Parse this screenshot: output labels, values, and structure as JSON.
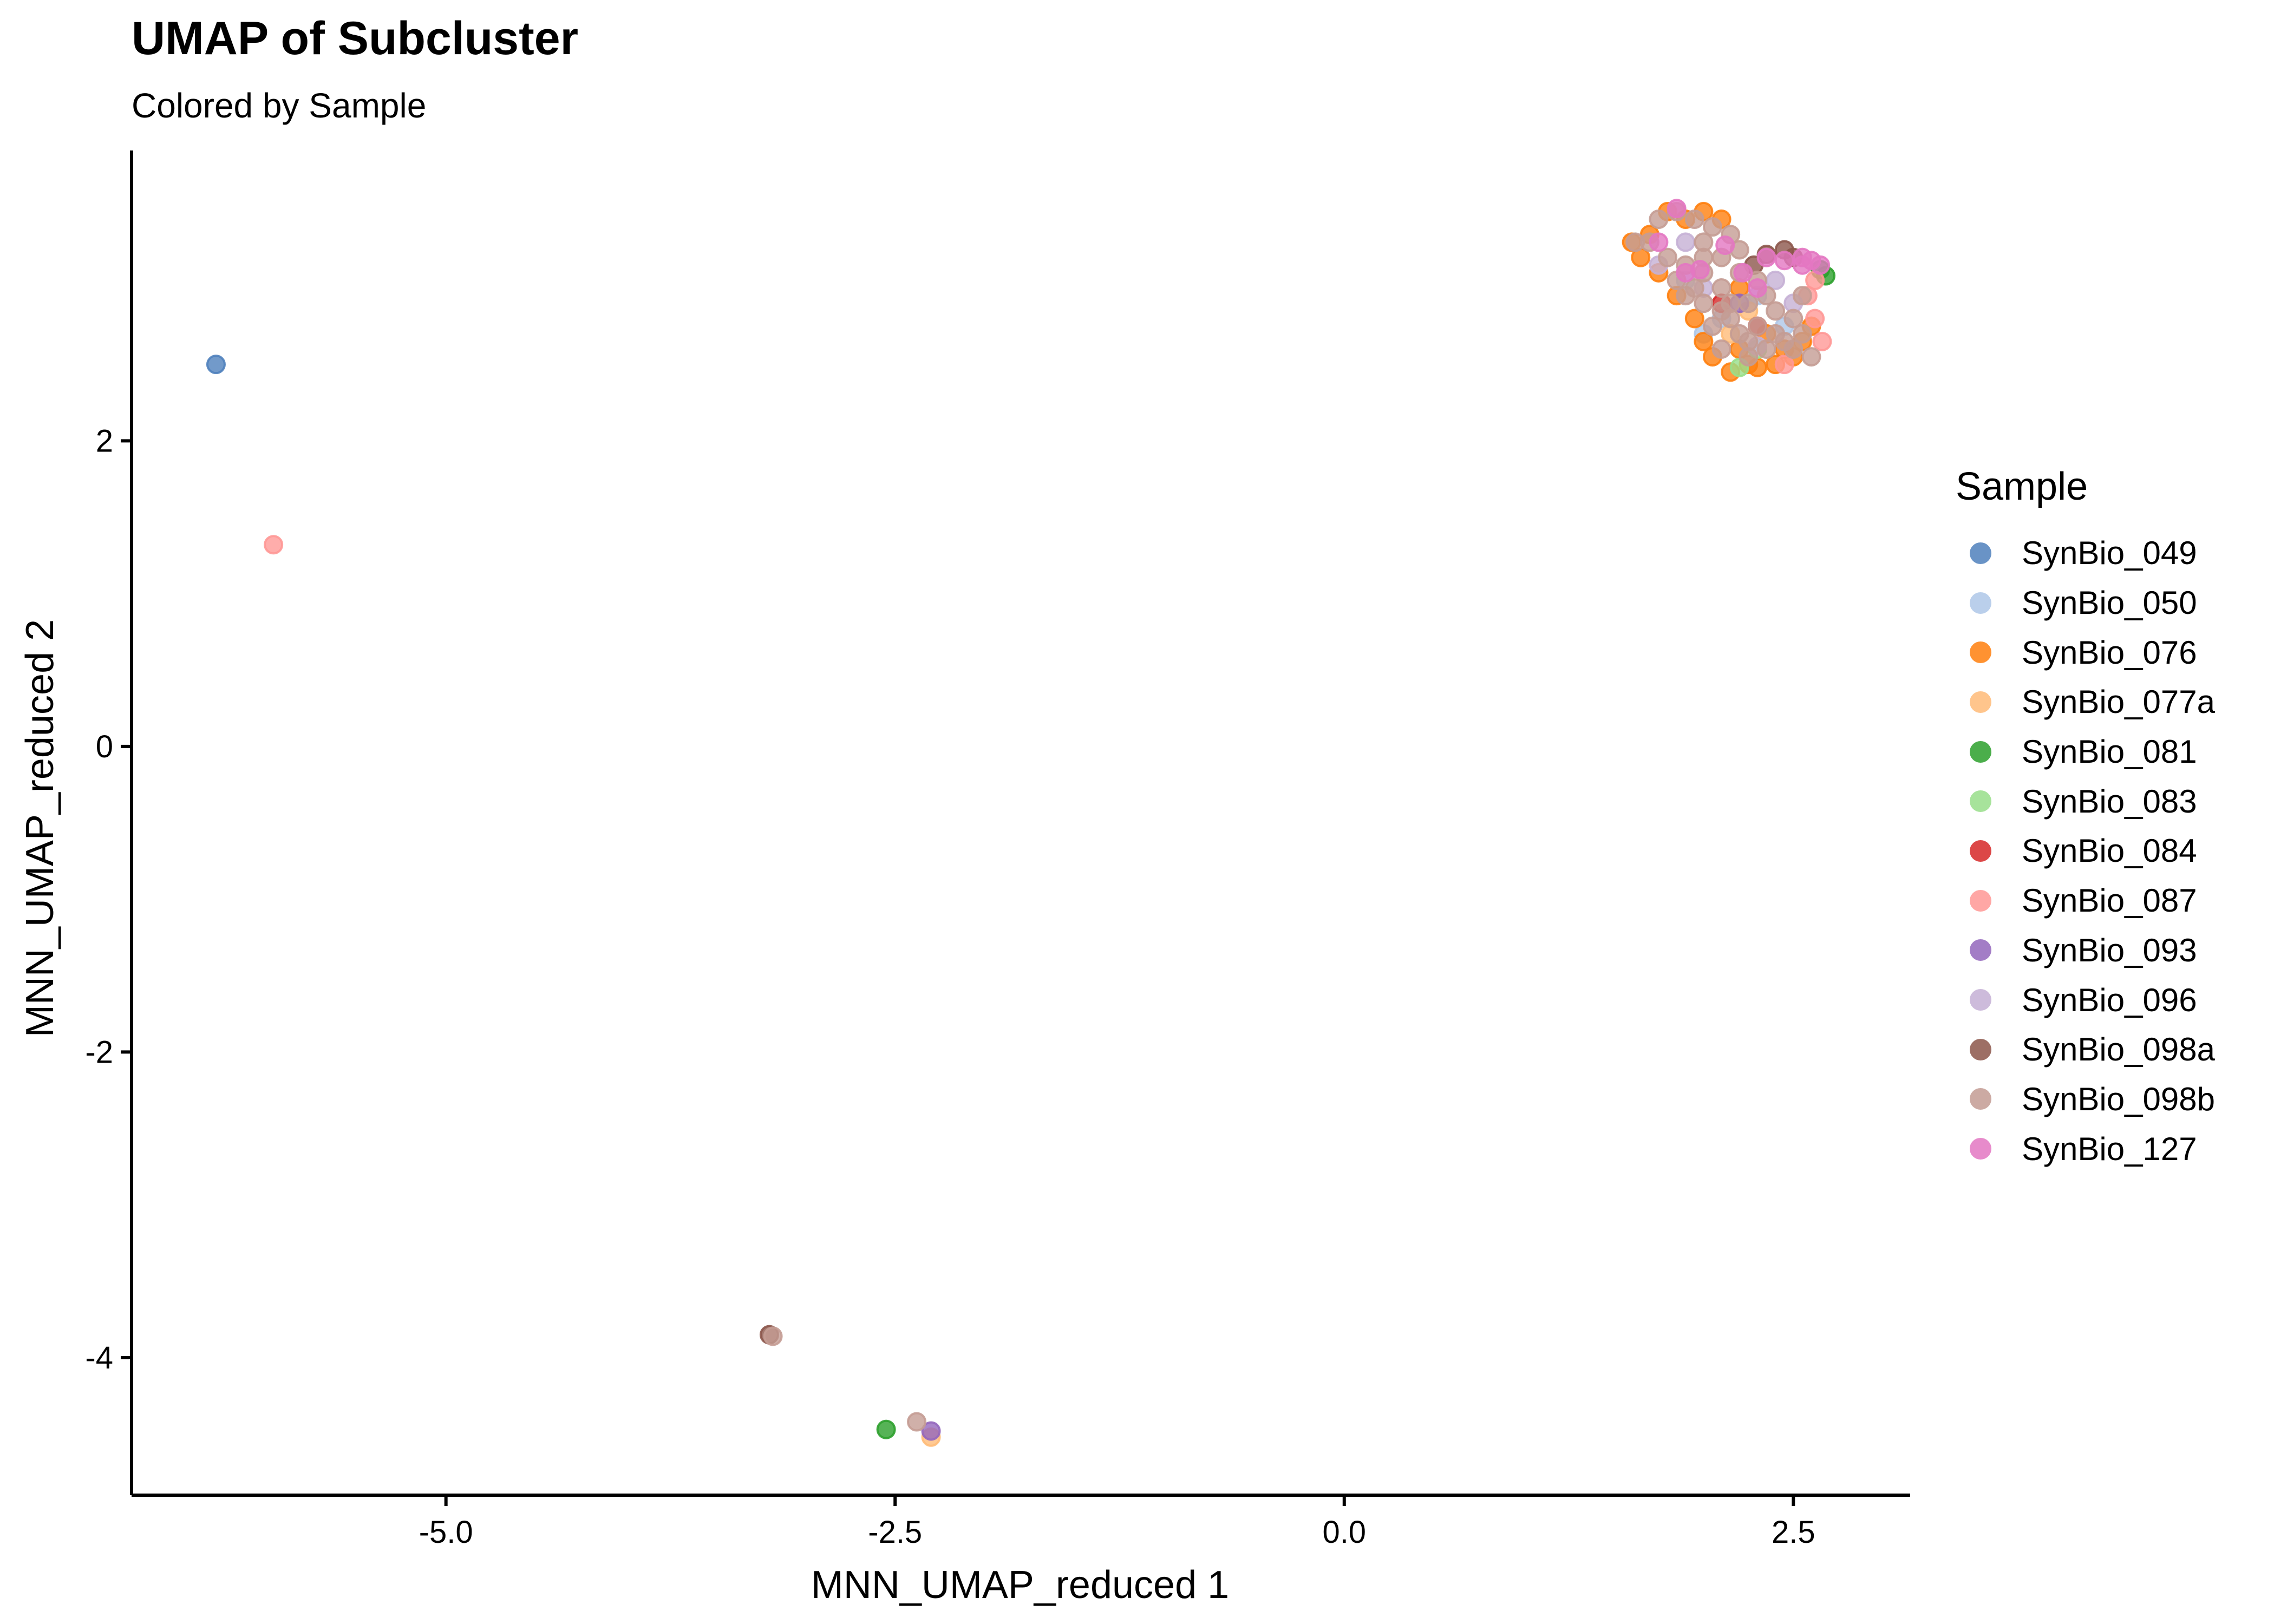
{
  "chart_data": {
    "type": "scatter",
    "title": "UMAP of Subcluster",
    "subtitle": "Colored by Sample",
    "xlabel": "MNN_UMAP_reduced 1",
    "ylabel": "MNN_UMAP_reduced 2",
    "xlim": [
      -6.75,
      3.15
    ],
    "ylim": [
      -4.9,
      3.9
    ],
    "xticks": [
      -5.0,
      -2.5,
      0.0,
      2.5
    ],
    "xtick_labels": [
      "-5.0",
      "-2.5",
      "0.0",
      "2.5"
    ],
    "yticks": [
      -4,
      -2,
      0,
      2
    ],
    "ytick_labels": [
      "-4",
      "-2",
      "0",
      "2"
    ],
    "grid": false,
    "legend": {
      "title": "Sample",
      "position": "right"
    },
    "series": [
      {
        "name": "SynBio_049",
        "color": "#4f81bd",
        "points": [
          [
            -6.28,
            2.5
          ]
        ]
      },
      {
        "name": "SynBio_050",
        "color": "#aec7e8",
        "points": [
          [
            1.9,
            3.05
          ],
          [
            2.1,
            2.8
          ],
          [
            2.3,
            2.95
          ],
          [
            2.0,
            2.7
          ],
          [
            2.45,
            2.75
          ]
        ]
      },
      {
        "name": "SynBio_076",
        "color": "#ff7f0e",
        "points": [
          [
            1.6,
            3.3
          ],
          [
            1.7,
            3.35
          ],
          [
            1.8,
            3.5
          ],
          [
            1.9,
            3.45
          ],
          [
            2.0,
            3.5
          ],
          [
            1.85,
            2.95
          ],
          [
            1.95,
            2.8
          ],
          [
            2.0,
            2.65
          ],
          [
            2.05,
            2.55
          ],
          [
            2.15,
            2.45
          ],
          [
            2.25,
            2.5
          ],
          [
            2.4,
            2.5
          ],
          [
            2.5,
            2.55
          ],
          [
            2.55,
            2.65
          ],
          [
            2.6,
            2.75
          ],
          [
            2.1,
            3.45
          ],
          [
            1.75,
            3.1
          ],
          [
            2.3,
            2.48
          ],
          [
            2.2,
            3.0
          ],
          [
            2.45,
            2.6
          ],
          [
            2.35,
            2.7
          ],
          [
            1.65,
            3.2
          ],
          [
            2.2,
            2.6
          ]
        ]
      },
      {
        "name": "SynBio_077a",
        "color": "#ffbb78",
        "points": [
          [
            -2.3,
            -4.52
          ],
          [
            2.15,
            2.7
          ],
          [
            2.25,
            2.85
          ]
        ]
      },
      {
        "name": "SynBio_081",
        "color": "#2ca02c",
        "points": [
          [
            -2.55,
            -4.47
          ],
          [
            2.68,
            3.08
          ],
          [
            2.65,
            3.12
          ]
        ]
      },
      {
        "name": "SynBio_083",
        "color": "#98df8a",
        "points": [
          [
            2.2,
            2.48
          ],
          [
            2.3,
            2.6
          ]
        ]
      },
      {
        "name": "SynBio_084",
        "color": "#d62728",
        "points": [
          [
            2.1,
            2.9
          ],
          [
            2.3,
            2.75
          ]
        ]
      },
      {
        "name": "SynBio_087",
        "color": "#ff9896",
        "points": [
          [
            -5.96,
            1.32
          ],
          [
            2.62,
            2.8
          ],
          [
            2.66,
            2.65
          ],
          [
            2.58,
            2.95
          ],
          [
            2.45,
            2.5
          ],
          [
            2.62,
            3.05
          ]
        ]
      },
      {
        "name": "SynBio_093",
        "color": "#9467bd",
        "points": [
          [
            -2.3,
            -4.48
          ],
          [
            2.2,
            2.9
          ]
        ]
      },
      {
        "name": "SynBio_096",
        "color": "#c5b0d5",
        "points": [
          [
            1.75,
            3.15
          ],
          [
            2.0,
            3.0
          ],
          [
            2.5,
            2.9
          ],
          [
            1.9,
            3.3
          ],
          [
            2.4,
            3.05
          ],
          [
            2.3,
            2.62
          ]
        ]
      },
      {
        "name": "SynBio_098a",
        "color": "#8c564b",
        "points": [
          [
            -3.2,
            -3.85
          ],
          [
            2.35,
            3.22
          ],
          [
            2.45,
            3.25
          ],
          [
            2.5,
            3.2
          ],
          [
            2.28,
            3.15
          ]
        ]
      },
      {
        "name": "SynBio_098b",
        "color": "#c49c94",
        "points": [
          [
            -3.18,
            -3.86
          ],
          [
            -2.38,
            -4.42
          ],
          [
            1.62,
            3.3
          ],
          [
            1.75,
            3.45
          ],
          [
            1.85,
            3.5
          ],
          [
            1.95,
            3.45
          ],
          [
            2.0,
            3.3
          ],
          [
            2.05,
            3.4
          ],
          [
            1.8,
            3.2
          ],
          [
            1.9,
            3.15
          ],
          [
            2.0,
            3.1
          ],
          [
            2.1,
            3.2
          ],
          [
            1.9,
            2.95
          ],
          [
            2.0,
            2.9
          ],
          [
            2.1,
            3.0
          ],
          [
            2.2,
            3.1
          ],
          [
            2.05,
            2.75
          ],
          [
            2.15,
            2.8
          ],
          [
            2.25,
            2.9
          ],
          [
            2.35,
            2.95
          ],
          [
            2.1,
            2.6
          ],
          [
            2.2,
            2.7
          ],
          [
            2.3,
            2.75
          ],
          [
            2.4,
            2.85
          ],
          [
            2.5,
            2.8
          ],
          [
            2.25,
            2.55
          ],
          [
            2.35,
            2.6
          ],
          [
            2.45,
            2.65
          ],
          [
            2.55,
            2.7
          ],
          [
            2.6,
            2.55
          ],
          [
            2.2,
            3.25
          ],
          [
            1.95,
            3.0
          ],
          [
            2.3,
            3.05
          ],
          [
            2.15,
            2.9
          ],
          [
            1.7,
            3.3
          ],
          [
            2.4,
            2.7
          ],
          [
            2.5,
            2.6
          ],
          [
            2.0,
            3.2
          ],
          [
            2.1,
            2.85
          ],
          [
            1.85,
            3.05
          ],
          [
            2.15,
            3.35
          ],
          [
            2.55,
            2.95
          ],
          [
            2.25,
            2.65
          ]
        ]
      },
      {
        "name": "SynBio_127",
        "color": "#e377c2",
        "points": [
          [
            1.85,
            3.52
          ],
          [
            1.75,
            3.3
          ],
          [
            1.9,
            3.1
          ],
          [
            1.98,
            3.12
          ],
          [
            2.12,
            3.28
          ],
          [
            2.22,
            3.1
          ],
          [
            2.35,
            3.2
          ],
          [
            2.45,
            3.18
          ],
          [
            2.55,
            3.2
          ],
          [
            2.6,
            3.18
          ],
          [
            2.65,
            3.15
          ],
          [
            2.3,
            3.0
          ],
          [
            2.55,
            3.15
          ]
        ]
      }
    ]
  }
}
